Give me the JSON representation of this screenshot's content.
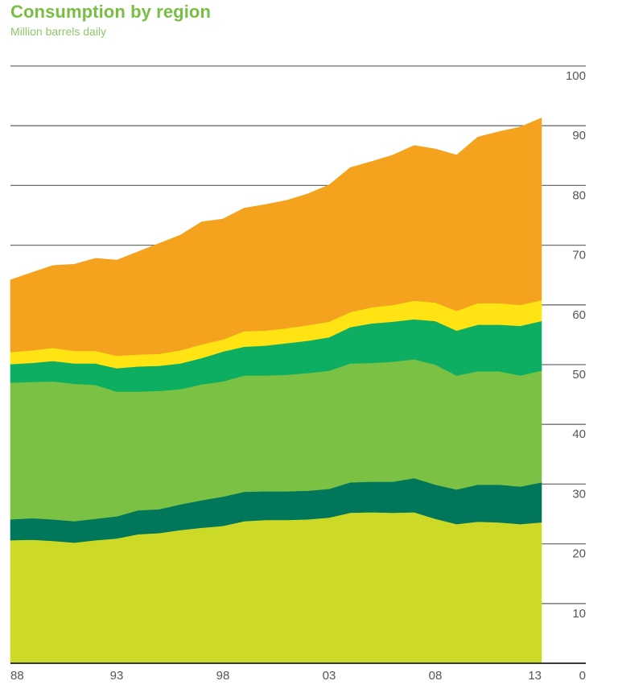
{
  "chart_data": {
    "type": "area",
    "stacked": true,
    "title": "Consumption by region",
    "subtitle": "Million barrels daily",
    "xlabel": "",
    "ylabel": "",
    "x": [
      1988,
      1989,
      1990,
      1991,
      1992,
      1993,
      1994,
      1995,
      1996,
      1997,
      1998,
      1999,
      2000,
      2001,
      2002,
      2003,
      2004,
      2005,
      2006,
      2007,
      2008,
      2009,
      2010,
      2011,
      2012,
      2013
    ],
    "x_tick_labels": [
      {
        "year": 1988,
        "label": "88"
      },
      {
        "year": 1993,
        "label": "93"
      },
      {
        "year": 1998,
        "label": "98"
      },
      {
        "year": 2003,
        "label": "03"
      },
      {
        "year": 2008,
        "label": "08"
      },
      {
        "year": 2013,
        "label": "13"
      }
    ],
    "ylim": [
      0,
      100
    ],
    "y_ticks": [
      0,
      10,
      20,
      30,
      40,
      50,
      60,
      70,
      80,
      90,
      100
    ],
    "y_axis_side": "right",
    "grid": true,
    "legend": "none",
    "series": [
      {
        "name": "yellow-green band",
        "color": "#CCDA27",
        "values": [
          20.6,
          20.7,
          20.5,
          20.2,
          20.6,
          20.9,
          21.6,
          21.8,
          22.3,
          22.7,
          23.0,
          23.8,
          24.0,
          24.0,
          24.1,
          24.4,
          25.2,
          25.3,
          25.2,
          25.3,
          24.2,
          23.3,
          23.7,
          23.6,
          23.3,
          23.6
        ]
      },
      {
        "name": "dark-green band",
        "color": "#00765A",
        "values": [
          3.5,
          3.6,
          3.6,
          3.6,
          3.6,
          3.7,
          4.0,
          4.0,
          4.3,
          4.6,
          4.9,
          4.9,
          4.8,
          4.8,
          4.8,
          4.8,
          5.1,
          5.1,
          5.2,
          5.7,
          5.7,
          5.8,
          6.2,
          6.3,
          6.3,
          6.7
        ]
      },
      {
        "name": "light-green band",
        "color": "#7BC143",
        "values": [
          22.9,
          22.8,
          23.1,
          23.0,
          22.4,
          20.9,
          19.9,
          19.8,
          19.3,
          19.4,
          19.3,
          19.5,
          19.4,
          19.5,
          19.7,
          19.8,
          19.9,
          19.9,
          20.1,
          19.9,
          20.1,
          19.1,
          19.0,
          19.0,
          18.6,
          18.7
        ]
      },
      {
        "name": "teal band",
        "color": "#0DAE62",
        "values": [
          3.1,
          3.2,
          3.4,
          3.4,
          3.6,
          3.9,
          4.2,
          4.2,
          4.3,
          4.4,
          5.0,
          4.8,
          5.0,
          5.3,
          5.4,
          5.6,
          6.1,
          6.6,
          6.7,
          6.7,
          7.3,
          7.5,
          7.8,
          7.8,
          8.3,
          8.3
        ]
      },
      {
        "name": "yellow band",
        "color": "#FFE312",
        "values": [
          2.0,
          2.1,
          2.2,
          2.1,
          2.1,
          2.1,
          2.0,
          2.0,
          2.2,
          2.3,
          2.0,
          2.6,
          2.5,
          2.5,
          2.6,
          2.6,
          2.5,
          2.7,
          2.8,
          3.1,
          3.1,
          3.3,
          3.6,
          3.6,
          3.5,
          3.5
        ]
      },
      {
        "name": "orange band",
        "color": "#F5A31F",
        "values": [
          12.1,
          13.0,
          13.8,
          14.5,
          15.5,
          16.0,
          17.2,
          18.5,
          19.3,
          20.5,
          20.2,
          20.6,
          21.1,
          21.4,
          22.0,
          22.9,
          24.2,
          24.4,
          25.1,
          26.0,
          25.7,
          26.1,
          27.8,
          28.7,
          29.8,
          30.5
        ]
      }
    ]
  },
  "colors": {
    "title": "#78BE43",
    "subtitle": "#8CC86A",
    "gridline": "#6E6E6E",
    "tick_label": "#555555"
  }
}
